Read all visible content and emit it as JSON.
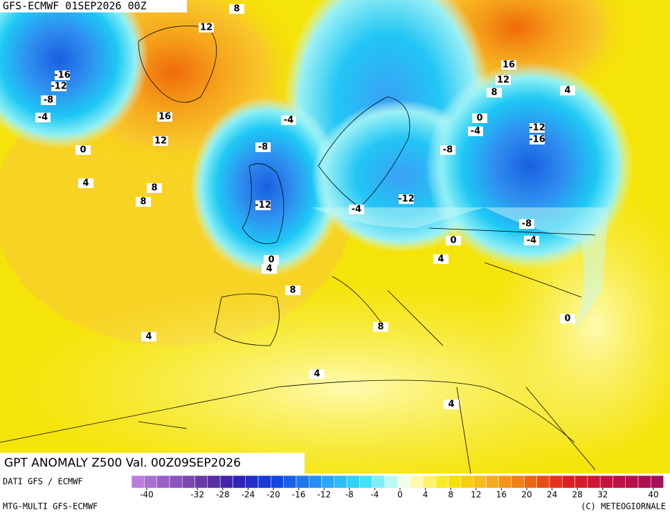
{
  "header": {
    "title": "GFS-ECMWF 01SEP2026 00Z"
  },
  "map_title": "GPT ANOMALY Z500 Val. 00Z09SEP2026",
  "footer": {
    "left_top": "DATI GFS / ECMWF",
    "left_bottom": "MTG-MULTI GFS-ECMWF",
    "right": "(C) METEOGIORNALE"
  },
  "contour_labels": [
    8,
    12,
    -16,
    -12,
    -8,
    -4,
    16,
    12,
    0,
    4,
    8,
    8,
    -4,
    -8,
    -12,
    -4,
    -12,
    0,
    4,
    8,
    0,
    4,
    8,
    4,
    4,
    4,
    16,
    12,
    8,
    4,
    0,
    -4,
    -8,
    -12,
    -16,
    -8,
    -4,
    0
  ],
  "colorbar": {
    "ticks": [
      -40,
      -32,
      -28,
      -24,
      -20,
      -16,
      -12,
      -8,
      -4,
      0,
      4,
      8,
      12,
      16,
      20,
      24,
      28,
      32,
      40
    ]
  }
}
